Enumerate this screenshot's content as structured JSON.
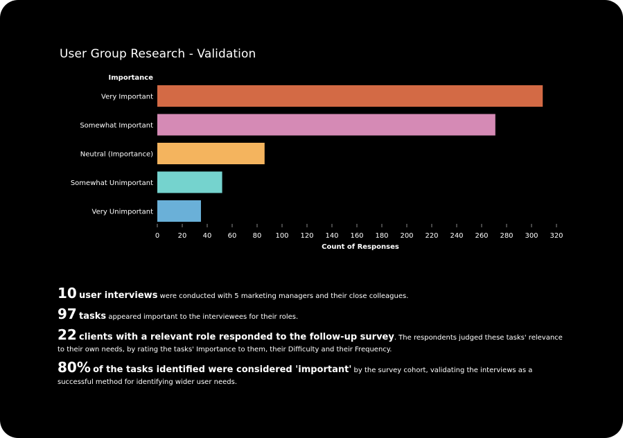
{
  "chart_data": {
    "type": "bar",
    "orientation": "horizontal",
    "title": "User Group Research - Validation",
    "ylabel": "Importance",
    "xlabel": "Count of Responses",
    "xlim": [
      0,
      320
    ],
    "xticks": [
      0,
      20,
      40,
      60,
      80,
      100,
      120,
      140,
      160,
      180,
      200,
      220,
      240,
      260,
      280,
      300,
      320
    ],
    "categories": [
      "Very Important",
      "Somewhat Important",
      "Neutral (Importance)",
      "Somewhat Unimportant",
      "Very Unimportant"
    ],
    "values": [
      309,
      271,
      86,
      52,
      35
    ],
    "colors": [
      "#d36a45",
      "#d58ab5",
      "#f4b45e",
      "#75d3ce",
      "#6ab0d8"
    ],
    "grid": false
  },
  "stats": [
    {
      "big": "10",
      "bold": "user interviews",
      "text": " were conducted with 5 marketing managers and their close colleagues."
    },
    {
      "big": "97",
      "bold": "tasks",
      "text": " appeared important to the interviewees for their roles."
    },
    {
      "big": "22",
      "bold": "clients with a relevant role responded to the follow-up survey",
      "text": ". The respondents judged these tasks' relevance to their own needs, by rating the tasks' Importance to them, their Difficulty and their Frequency."
    },
    {
      "big": "80%",
      "bold": "of the tasks identified were considered 'important'",
      "text": " by the survey cohort, validating the interviews as a successful method for identifying wider user needs."
    }
  ]
}
